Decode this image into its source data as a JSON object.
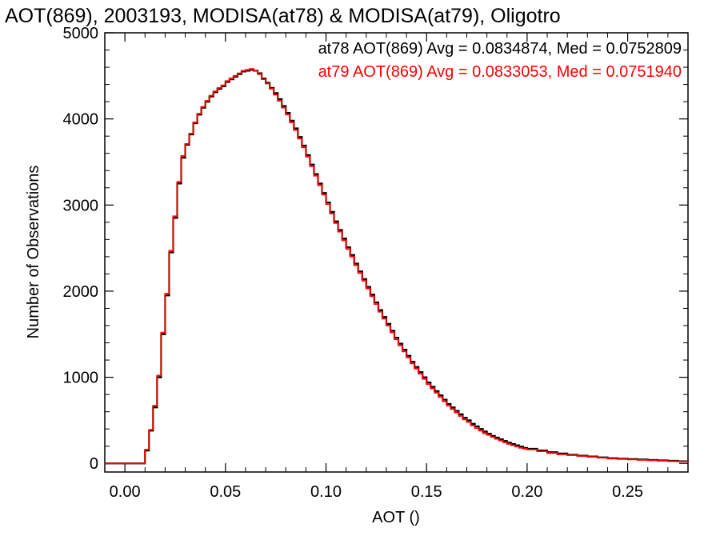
{
  "chart_data": {
    "type": "line",
    "title": "AOT(869), 2003193, MODISA(at78) & MODISA(at79), Oligotro",
    "xlabel": "AOT ()",
    "ylabel": "Number of Observations",
    "xlim": [
      -0.01,
      0.28
    ],
    "ylim": [
      -100,
      5000
    ],
    "x_ticks": [
      0.0,
      0.05,
      0.1,
      0.15,
      0.2,
      0.25
    ],
    "x_tick_labels": [
      "0.00",
      "0.05",
      "0.10",
      "0.15",
      "0.20",
      "0.25"
    ],
    "y_ticks": [
      0,
      1000,
      2000,
      3000,
      4000,
      5000
    ],
    "y_tick_labels": [
      "0",
      "1000",
      "2000",
      "3000",
      "4000",
      "5000"
    ],
    "grid": false,
    "legend_position": "top-right",
    "series": [
      {
        "name": "at78 AOT(869) Avg = 0.0834874, Med = 0.0752809",
        "color": "#000000",
        "points": [
          [
            -0.01,
            0
          ],
          [
            0.008,
            0
          ],
          [
            0.01,
            150
          ],
          [
            0.012,
            380
          ],
          [
            0.014,
            650
          ],
          [
            0.016,
            1000
          ],
          [
            0.018,
            1500
          ],
          [
            0.02,
            1950
          ],
          [
            0.022,
            2450
          ],
          [
            0.024,
            2850
          ],
          [
            0.026,
            3250
          ],
          [
            0.028,
            3550
          ],
          [
            0.03,
            3700
          ],
          [
            0.032,
            3820
          ],
          [
            0.034,
            3950
          ],
          [
            0.036,
            4050
          ],
          [
            0.038,
            4130
          ],
          [
            0.04,
            4200
          ],
          [
            0.042,
            4260
          ],
          [
            0.044,
            4310
          ],
          [
            0.046,
            4350
          ],
          [
            0.048,
            4380
          ],
          [
            0.05,
            4430
          ],
          [
            0.052,
            4460
          ],
          [
            0.054,
            4490
          ],
          [
            0.056,
            4520
          ],
          [
            0.058,
            4550
          ],
          [
            0.06,
            4560
          ],
          [
            0.062,
            4570
          ],
          [
            0.064,
            4560
          ],
          [
            0.066,
            4530
          ],
          [
            0.068,
            4470
          ],
          [
            0.07,
            4420
          ],
          [
            0.072,
            4360
          ],
          [
            0.074,
            4300
          ],
          [
            0.076,
            4230
          ],
          [
            0.078,
            4150
          ],
          [
            0.08,
            4070
          ],
          [
            0.082,
            3980
          ],
          [
            0.084,
            3890
          ],
          [
            0.086,
            3790
          ],
          [
            0.088,
            3690
          ],
          [
            0.09,
            3580
          ],
          [
            0.092,
            3470
          ],
          [
            0.094,
            3360
          ],
          [
            0.096,
            3250
          ],
          [
            0.098,
            3140
          ],
          [
            0.1,
            3030
          ],
          [
            0.102,
            2920
          ],
          [
            0.104,
            2810
          ],
          [
            0.106,
            2710
          ],
          [
            0.108,
            2610
          ],
          [
            0.11,
            2510
          ],
          [
            0.112,
            2420
          ],
          [
            0.114,
            2320
          ],
          [
            0.116,
            2230
          ],
          [
            0.118,
            2140
          ],
          [
            0.12,
            2050
          ],
          [
            0.122,
            1960
          ],
          [
            0.124,
            1870
          ],
          [
            0.126,
            1780
          ],
          [
            0.128,
            1700
          ],
          [
            0.13,
            1620
          ],
          [
            0.132,
            1540
          ],
          [
            0.134,
            1460
          ],
          [
            0.136,
            1390
          ],
          [
            0.138,
            1320
          ],
          [
            0.14,
            1250
          ],
          [
            0.142,
            1180
          ],
          [
            0.144,
            1120
          ],
          [
            0.146,
            1060
          ],
          [
            0.148,
            1000
          ],
          [
            0.15,
            940
          ],
          [
            0.152,
            890
          ],
          [
            0.154,
            840
          ],
          [
            0.156,
            790
          ],
          [
            0.158,
            740
          ],
          [
            0.16,
            690
          ],
          [
            0.162,
            650
          ],
          [
            0.164,
            610
          ],
          [
            0.166,
            570
          ],
          [
            0.168,
            530
          ],
          [
            0.17,
            500
          ],
          [
            0.172,
            460
          ],
          [
            0.174,
            430
          ],
          [
            0.176,
            400
          ],
          [
            0.178,
            370
          ],
          [
            0.18,
            345
          ],
          [
            0.182,
            320
          ],
          [
            0.184,
            300
          ],
          [
            0.186,
            280
          ],
          [
            0.188,
            260
          ],
          [
            0.19,
            240
          ],
          [
            0.192,
            225
          ],
          [
            0.194,
            210
          ],
          [
            0.196,
            195
          ],
          [
            0.198,
            180
          ],
          [
            0.2,
            170
          ],
          [
            0.205,
            150
          ],
          [
            0.21,
            130
          ],
          [
            0.215,
            115
          ],
          [
            0.22,
            100
          ],
          [
            0.225,
            90
          ],
          [
            0.23,
            80
          ],
          [
            0.235,
            70
          ],
          [
            0.24,
            60
          ],
          [
            0.245,
            55
          ],
          [
            0.25,
            50
          ],
          [
            0.255,
            45
          ],
          [
            0.26,
            40
          ],
          [
            0.265,
            35
          ],
          [
            0.27,
            30
          ],
          [
            0.275,
            25
          ],
          [
            0.28,
            20
          ]
        ]
      },
      {
        "name": "at79 AOT(869) Avg = 0.0833053, Med = 0.0751940",
        "color": "#ff0000",
        "points": [
          [
            -0.01,
            0
          ],
          [
            0.008,
            0
          ],
          [
            0.01,
            160
          ],
          [
            0.012,
            390
          ],
          [
            0.014,
            670
          ],
          [
            0.016,
            1020
          ],
          [
            0.018,
            1520
          ],
          [
            0.02,
            1970
          ],
          [
            0.022,
            2470
          ],
          [
            0.024,
            2870
          ],
          [
            0.026,
            3270
          ],
          [
            0.028,
            3570
          ],
          [
            0.03,
            3710
          ],
          [
            0.032,
            3830
          ],
          [
            0.034,
            3960
          ],
          [
            0.036,
            4060
          ],
          [
            0.038,
            4140
          ],
          [
            0.04,
            4210
          ],
          [
            0.042,
            4270
          ],
          [
            0.044,
            4320
          ],
          [
            0.046,
            4360
          ],
          [
            0.048,
            4390
          ],
          [
            0.05,
            4440
          ],
          [
            0.052,
            4470
          ],
          [
            0.054,
            4500
          ],
          [
            0.056,
            4530
          ],
          [
            0.058,
            4560
          ],
          [
            0.06,
            4570
          ],
          [
            0.062,
            4580
          ],
          [
            0.064,
            4560
          ],
          [
            0.066,
            4520
          ],
          [
            0.068,
            4460
          ],
          [
            0.07,
            4410
          ],
          [
            0.072,
            4350
          ],
          [
            0.074,
            4280
          ],
          [
            0.076,
            4210
          ],
          [
            0.078,
            4130
          ],
          [
            0.08,
            4050
          ],
          [
            0.082,
            3960
          ],
          [
            0.084,
            3870
          ],
          [
            0.086,
            3770
          ],
          [
            0.088,
            3670
          ],
          [
            0.09,
            3560
          ],
          [
            0.092,
            3450
          ],
          [
            0.094,
            3340
          ],
          [
            0.096,
            3230
          ],
          [
            0.098,
            3120
          ],
          [
            0.1,
            3010
          ],
          [
            0.102,
            2900
          ],
          [
            0.104,
            2790
          ],
          [
            0.106,
            2690
          ],
          [
            0.108,
            2590
          ],
          [
            0.11,
            2490
          ],
          [
            0.112,
            2400
          ],
          [
            0.114,
            2300
          ],
          [
            0.116,
            2210
          ],
          [
            0.118,
            2120
          ],
          [
            0.12,
            2030
          ],
          [
            0.122,
            1940
          ],
          [
            0.124,
            1850
          ],
          [
            0.126,
            1760
          ],
          [
            0.128,
            1680
          ],
          [
            0.13,
            1600
          ],
          [
            0.132,
            1520
          ],
          [
            0.134,
            1440
          ],
          [
            0.136,
            1370
          ],
          [
            0.138,
            1300
          ],
          [
            0.14,
            1230
          ],
          [
            0.142,
            1160
          ],
          [
            0.144,
            1100
          ],
          [
            0.146,
            1040
          ],
          [
            0.148,
            980
          ],
          [
            0.15,
            920
          ],
          [
            0.152,
            870
          ],
          [
            0.154,
            820
          ],
          [
            0.156,
            770
          ],
          [
            0.158,
            720
          ],
          [
            0.16,
            670
          ],
          [
            0.162,
            630
          ],
          [
            0.164,
            590
          ],
          [
            0.166,
            550
          ],
          [
            0.168,
            510
          ],
          [
            0.17,
            480
          ],
          [
            0.172,
            440
          ],
          [
            0.174,
            410
          ],
          [
            0.176,
            380
          ],
          [
            0.178,
            350
          ],
          [
            0.18,
            330
          ],
          [
            0.182,
            305
          ],
          [
            0.184,
            285
          ],
          [
            0.186,
            265
          ],
          [
            0.188,
            245
          ],
          [
            0.19,
            225
          ],
          [
            0.192,
            210
          ],
          [
            0.194,
            195
          ],
          [
            0.196,
            180
          ],
          [
            0.198,
            170
          ],
          [
            0.2,
            160
          ],
          [
            0.205,
            140
          ],
          [
            0.21,
            120
          ],
          [
            0.215,
            105
          ],
          [
            0.22,
            95
          ],
          [
            0.225,
            85
          ],
          [
            0.23,
            75
          ],
          [
            0.235,
            65
          ],
          [
            0.24,
            55
          ],
          [
            0.245,
            50
          ],
          [
            0.25,
            45
          ],
          [
            0.255,
            40
          ],
          [
            0.26,
            35
          ],
          [
            0.265,
            30
          ],
          [
            0.27,
            25
          ],
          [
            0.275,
            22
          ],
          [
            0.28,
            18
          ]
        ]
      }
    ]
  }
}
